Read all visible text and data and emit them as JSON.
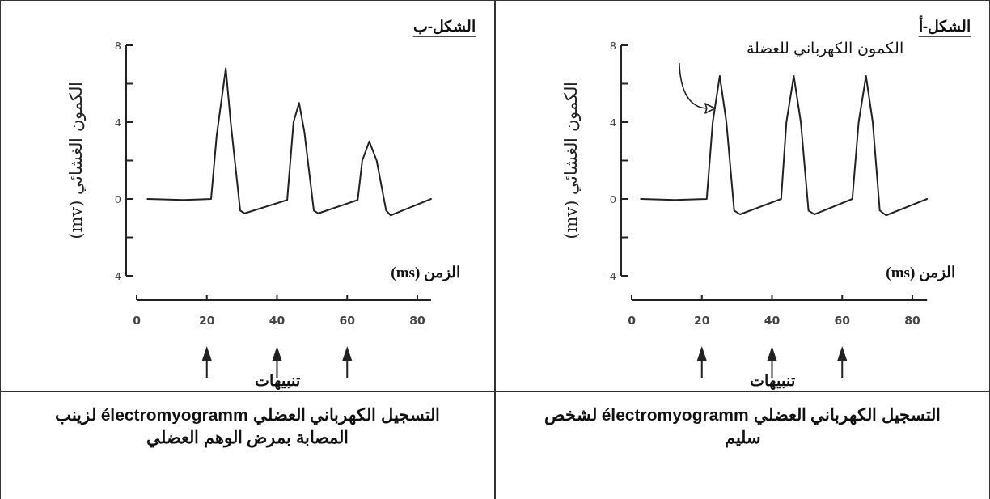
{
  "chart_data": [
    {
      "type": "line",
      "title": "الشكل-أ",
      "xlabel": "الزمن (ms)",
      "ylabel": "الكمون الغشائي (mv)",
      "x": [
        2.6,
        12.3,
        21.4,
        23.1,
        25.1,
        27.0,
        29.2,
        30.9,
        42.6,
        44.1,
        46.2,
        48.2,
        50.4,
        52.1,
        62.9,
        64.7,
        66.8,
        68.7,
        70.7,
        72.5,
        84.2
      ],
      "series": [
        {
          "color": "#222222",
          "values": [
            0,
            -0.05,
            0,
            4,
            6.4,
            4,
            -0.6,
            -0.8,
            0,
            4,
            6.4,
            4,
            -0.6,
            -0.8,
            0,
            4,
            6.4,
            4,
            -0.6,
            -0.85,
            0
          ]
        }
      ],
      "xlim": [
        0,
        84.2
      ],
      "xticks": [
        0,
        20,
        40,
        60,
        80
      ],
      "ylim": [
        -4,
        8
      ],
      "yticks": [
        -4,
        {
          "value": -2,
          "label": null
        },
        0,
        {
          "value": 2,
          "label": null
        },
        4,
        {
          "value": 6,
          "label": null
        },
        8
      ],
      "annotations": [
        "الكمون الكهرباني للعضلة",
        "تنبيهات",
        "التسجيل الكهرباني العضلي électromyogramm لشخص سليم"
      ],
      "grid": false,
      "marker": "none",
      "line_style": "solid"
    },
    {
      "type": "line",
      "title": "الشكل-ب",
      "xlabel": "الزمن (ms)",
      "ylabel": "الكمون الغشائي (mv)",
      "x": [
        3.1,
        13.3,
        21.2,
        22.8,
        25.4,
        26.8,
        29.5,
        30.8,
        42.9,
        44.7,
        46.3,
        47.8,
        50.5,
        51.8,
        63.0,
        64.3,
        66.3,
        68.4,
        71.1,
        72.4,
        83.9
      ],
      "series": [
        {
          "color": "#222222",
          "values": [
            0,
            -0.05,
            0,
            3.3,
            6.8,
            4,
            -0.6,
            -0.75,
            -0.05,
            4,
            5,
            3.5,
            -0.6,
            -0.75,
            -0.05,
            2,
            3,
            2,
            -0.6,
            -0.85,
            0
          ]
        }
      ],
      "xlim": [
        0,
        83.9
      ],
      "xticks": [
        0,
        20,
        40,
        60,
        80
      ],
      "ylim": [
        -4,
        8
      ],
      "yticks": [
        -4,
        {
          "value": -2,
          "label": null
        },
        0,
        {
          "value": 2,
          "label": null
        },
        4,
        {
          "value": 6,
          "label": null
        },
        8
      ],
      "annotations": [
        "تنبيهات",
        "التسجيل الكهرباني العضلي électromyogramm لزينب المصابة بمرض الوهم العضلي"
      ],
      "grid": false,
      "marker": "none",
      "line_style": "solid"
    }
  ]
}
